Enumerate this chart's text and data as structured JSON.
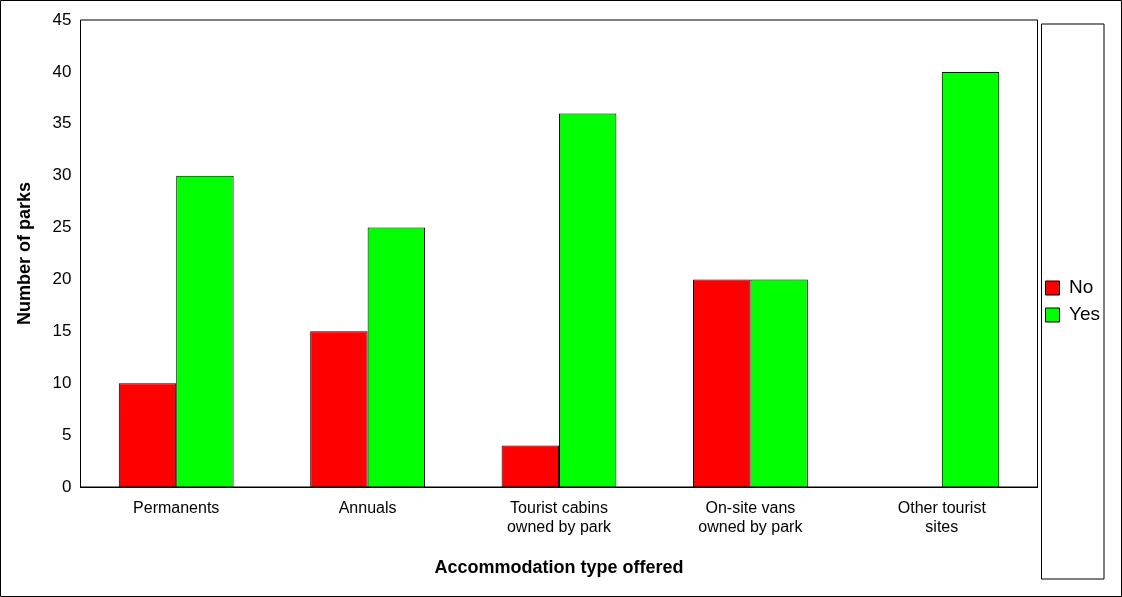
{
  "chart_data": {
    "type": "bar",
    "xlabel": "Accommodation type offered",
    "ylabel": "Number of parks",
    "categories": [
      "Permanents",
      "Annuals",
      "Tourist cabins owned by park",
      "On-site vans owned by park",
      "Other tourist sites"
    ],
    "series": [
      {
        "name": "No",
        "color": "#ff0000",
        "values": [
          10,
          15,
          4,
          20,
          0
        ]
      },
      {
        "name": "Yes",
        "color": "#00ff00",
        "values": [
          30,
          25,
          36,
          20,
          40
        ]
      }
    ],
    "ylim": [
      0,
      45
    ],
    "yticks": [
      0,
      5,
      10,
      15,
      20,
      25,
      30,
      35,
      40,
      45
    ],
    "grid": false,
    "legend": "right"
  }
}
